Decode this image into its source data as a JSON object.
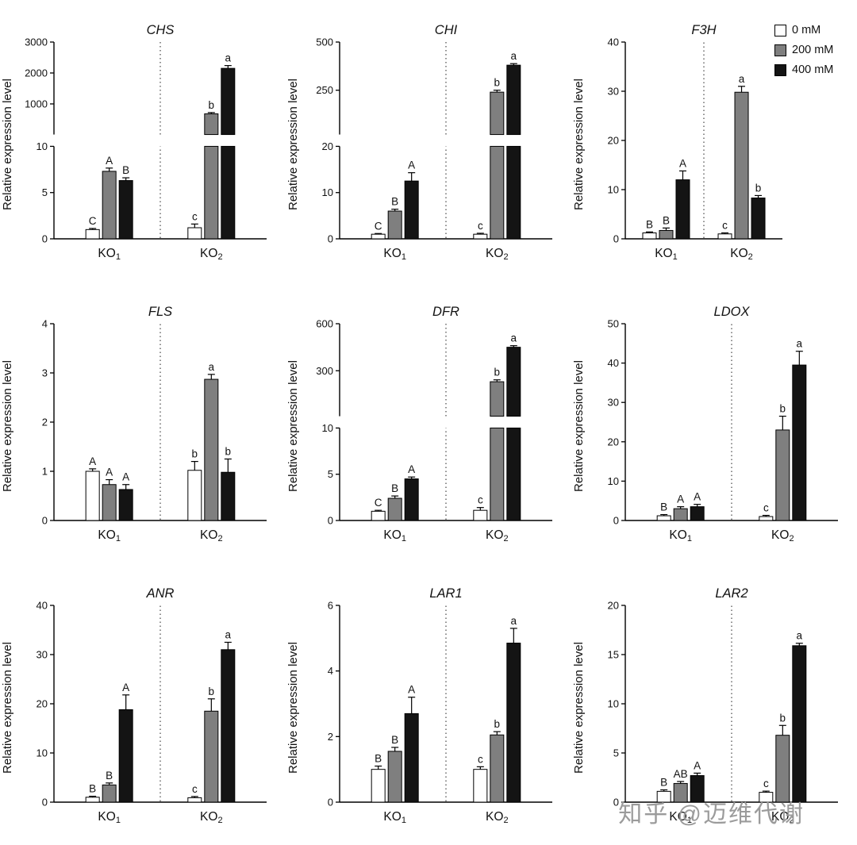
{
  "figure": {
    "ylabel": "Relative expression level",
    "watermark": "知乎 @迈维代谢"
  },
  "legend": {
    "position": "top-right",
    "items": [
      {
        "label": "0 mM",
        "color": "#ffffff"
      },
      {
        "label": "200 mM",
        "color": "#7f7f7f"
      },
      {
        "label": "400 mM",
        "color": "#141414"
      }
    ]
  },
  "groups": [
    {
      "base": "KO",
      "sub": "1"
    },
    {
      "base": "KO",
      "sub": "2"
    }
  ],
  "chart_data": [
    {
      "type": "bar",
      "title": "CHS",
      "ylabel": "Relative expression level",
      "categories": [
        "KO1",
        "KO2"
      ],
      "series_labels": [
        "0 mM",
        "200 mM",
        "400 mM"
      ],
      "axis": {
        "broken": true,
        "lower": {
          "min": 0,
          "max": 10,
          "ticks": [
            0,
            5,
            10
          ]
        },
        "upper": {
          "max": 3000,
          "ticks": [
            1000,
            2000,
            3000
          ]
        }
      },
      "values": [
        [
          1.0,
          7.3,
          6.3
        ],
        [
          1.2,
          680,
          2150
        ]
      ],
      "errors": [
        [
          0.12,
          0.35,
          0.3
        ],
        [
          0.4,
          40,
          90
        ]
      ],
      "letters": [
        [
          "C",
          "A",
          "B"
        ],
        [
          "c",
          "b",
          "a"
        ]
      ]
    },
    {
      "type": "bar",
      "title": "CHI",
      "ylabel": "Relative expression level",
      "categories": [
        "KO1",
        "KO2"
      ],
      "series_labels": [
        "0 mM",
        "200 mM",
        "400 mM"
      ],
      "axis": {
        "broken": true,
        "lower": {
          "min": 0,
          "max": 20,
          "ticks": [
            0,
            10,
            20
          ]
        },
        "upper": {
          "max": 500,
          "ticks": [
            250,
            500
          ]
        }
      },
      "values": [
        [
          1.0,
          6.0,
          12.5
        ],
        [
          1.0,
          240,
          380
        ]
      ],
      "errors": [
        [
          0.15,
          0.4,
          1.8
        ],
        [
          0.2,
          10,
          8
        ]
      ],
      "letters": [
        [
          "C",
          "B",
          "A"
        ],
        [
          "c",
          "b",
          "a"
        ]
      ]
    },
    {
      "type": "bar",
      "title": "F3H",
      "ylabel": "Relative expression level",
      "categories": [
        "KO1",
        "KO2"
      ],
      "series_labels": [
        "0 mM",
        "200 mM",
        "400 mM"
      ],
      "axis": {
        "broken": false,
        "min": 0,
        "max": 40,
        "ticks": [
          0,
          10,
          20,
          30,
          40
        ]
      },
      "values": [
        [
          1.2,
          1.7,
          12.0
        ],
        [
          1.0,
          29.8,
          8.3
        ]
      ],
      "errors": [
        [
          0.2,
          0.5,
          1.8
        ],
        [
          0.2,
          1.2,
          0.5
        ]
      ],
      "letters": [
        [
          "B",
          "B",
          "A"
        ],
        [
          "c",
          "a",
          "b"
        ]
      ]
    },
    {
      "type": "bar",
      "title": "FLS",
      "ylabel": "Relative expression level",
      "categories": [
        "KO1",
        "KO2"
      ],
      "series_labels": [
        "0 mM",
        "200 mM",
        "400 mM"
      ],
      "axis": {
        "broken": false,
        "min": 0,
        "max": 4,
        "ticks": [
          0,
          1,
          2,
          3,
          4
        ]
      },
      "values": [
        [
          1.0,
          0.73,
          0.63
        ],
        [
          1.02,
          2.87,
          0.98
        ]
      ],
      "errors": [
        [
          0.05,
          0.1,
          0.1
        ],
        [
          0.18,
          0.1,
          0.27
        ]
      ],
      "letters": [
        [
          "A",
          "A",
          "A"
        ],
        [
          "b",
          "a",
          "b"
        ]
      ]
    },
    {
      "type": "bar",
      "title": "DFR",
      "ylabel": "Relative expression level",
      "categories": [
        "KO1",
        "KO2"
      ],
      "series_labels": [
        "0 mM",
        "200 mM",
        "400 mM"
      ],
      "axis": {
        "broken": true,
        "lower": {
          "min": 0,
          "max": 10,
          "ticks": [
            0,
            5,
            10
          ]
        },
        "upper": {
          "max": 600,
          "ticks": [
            300,
            600
          ]
        }
      },
      "values": [
        [
          1.0,
          2.4,
          4.5
        ],
        [
          1.1,
          230,
          450
        ]
      ],
      "errors": [
        [
          0.1,
          0.25,
          0.2
        ],
        [
          0.3,
          12,
          10
        ]
      ],
      "letters": [
        [
          "C",
          "B",
          "A"
        ],
        [
          "c",
          "b",
          "a"
        ]
      ]
    },
    {
      "type": "bar",
      "title": "LDOX",
      "ylabel": "Relative expression level",
      "categories": [
        "KO1",
        "KO2"
      ],
      "series_labels": [
        "0 mM",
        "200 mM",
        "400 mM"
      ],
      "axis": {
        "broken": false,
        "min": 0,
        "max": 50,
        "ticks": [
          0,
          10,
          20,
          30,
          40,
          50
        ]
      },
      "values": [
        [
          1.2,
          3.0,
          3.5
        ],
        [
          1.0,
          23.0,
          39.5
        ]
      ],
      "errors": [
        [
          0.3,
          0.5,
          0.6
        ],
        [
          0.3,
          3.5,
          3.5
        ]
      ],
      "letters": [
        [
          "B",
          "A",
          "A"
        ],
        [
          "c",
          "b",
          "a"
        ]
      ]
    },
    {
      "type": "bar",
      "title": "ANR",
      "ylabel": "Relative expression level",
      "categories": [
        "KO1",
        "KO2"
      ],
      "series_labels": [
        "0 mM",
        "200 mM",
        "400 mM"
      ],
      "axis": {
        "broken": false,
        "min": 0,
        "max": 40,
        "ticks": [
          0,
          10,
          20,
          30,
          40
        ]
      },
      "values": [
        [
          1.0,
          3.5,
          18.8
        ],
        [
          0.9,
          18.5,
          31.0
        ]
      ],
      "errors": [
        [
          0.2,
          0.4,
          3.0
        ],
        [
          0.25,
          2.5,
          1.5
        ]
      ],
      "letters": [
        [
          "B",
          "B",
          "A"
        ],
        [
          "c",
          "b",
          "a"
        ]
      ]
    },
    {
      "type": "bar",
      "title": "LAR1",
      "ylabel": "Relative expression level",
      "categories": [
        "KO1",
        "KO2"
      ],
      "series_labels": [
        "0 mM",
        "200 mM",
        "400 mM"
      ],
      "axis": {
        "broken": false,
        "min": 0,
        "max": 6,
        "ticks": [
          0,
          2,
          4,
          6
        ]
      },
      "values": [
        [
          1.0,
          1.55,
          2.7
        ],
        [
          1.0,
          2.05,
          4.85
        ]
      ],
      "errors": [
        [
          0.1,
          0.12,
          0.5
        ],
        [
          0.08,
          0.1,
          0.45
        ]
      ],
      "letters": [
        [
          "B",
          "B",
          "A"
        ],
        [
          "c",
          "b",
          "a"
        ]
      ]
    },
    {
      "type": "bar",
      "title": "LAR2",
      "ylabel": "Relative expression level",
      "categories": [
        "KO1",
        "KO2"
      ],
      "series_labels": [
        "0 mM",
        "200 mM",
        "400 mM"
      ],
      "axis": {
        "broken": false,
        "min": 0,
        "max": 20,
        "ticks": [
          0,
          5,
          10,
          15,
          20
        ]
      },
      "values": [
        [
          1.1,
          1.9,
          2.7
        ],
        [
          1.0,
          6.8,
          15.9
        ]
      ],
      "errors": [
        [
          0.15,
          0.2,
          0.25
        ],
        [
          0.12,
          1.0,
          0.25
        ]
      ],
      "letters": [
        [
          "B",
          "AB",
          "A"
        ],
        [
          "c",
          "b",
          "a"
        ]
      ]
    }
  ]
}
